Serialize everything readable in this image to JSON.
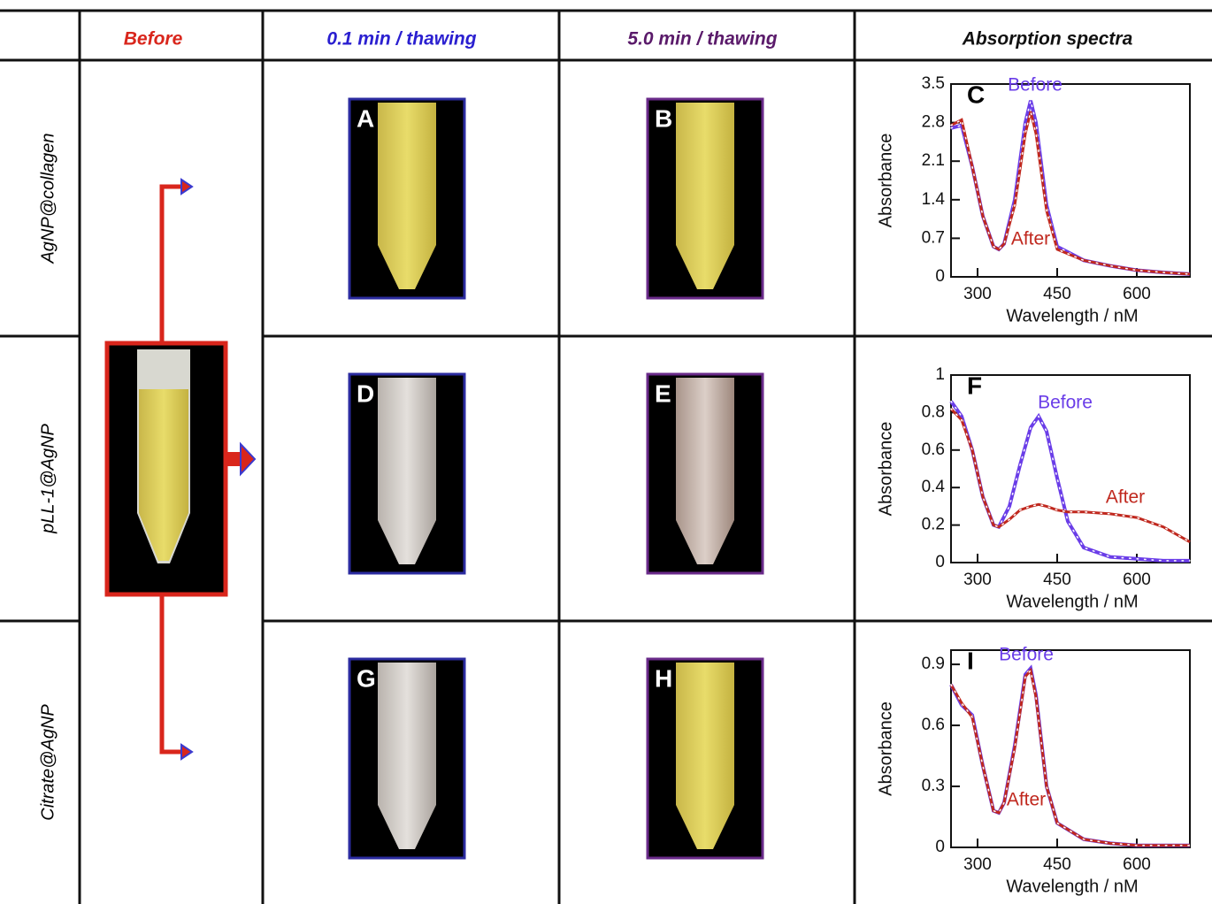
{
  "header": {
    "cells": [
      "Before",
      "0.1 min /  thawing",
      "5.0 min / thawing",
      "Absorption spectra"
    ]
  },
  "rows": [
    "AgNP@collagen",
    "pLL-1@AgNP",
    "Citrate@AgNP"
  ],
  "panels": [
    "A",
    "B",
    "D",
    "E",
    "G",
    "H"
  ],
  "chart_data": [
    {
      "type": "line",
      "title": "C",
      "x_label": "Wavelength / nM",
      "y_label": "Absorbance",
      "x": [
        250,
        270,
        290,
        310,
        330,
        340,
        350,
        370,
        390,
        400,
        410,
        430,
        450,
        500,
        550,
        600,
        650,
        700
      ],
      "series": [
        {
          "name": "Before",
          "color": "#6a3de8",
          "values": [
            2.7,
            2.75,
            2.0,
            1.1,
            0.55,
            0.5,
            0.6,
            1.4,
            2.8,
            3.2,
            2.8,
            1.3,
            0.55,
            0.3,
            0.2,
            0.12,
            0.08,
            0.05
          ]
        },
        {
          "name": "After",
          "color": "#c0281e",
          "values": [
            2.75,
            2.85,
            2.0,
            1.1,
            0.55,
            0.5,
            0.6,
            1.3,
            2.6,
            3.0,
            2.6,
            1.2,
            0.5,
            0.3,
            0.2,
            0.12,
            0.08,
            0.05
          ]
        }
      ],
      "xlim": [
        250,
        700
      ],
      "xticks": [
        300,
        450,
        600
      ],
      "ylim": [
        0,
        3.5
      ],
      "yticks": [
        0,
        0.7,
        1.4,
        2.1,
        2.8,
        3.5
      ]
    },
    {
      "type": "line",
      "title": "F",
      "x_label": "Wavelength / nM",
      "y_label": "Absorbance",
      "x": [
        250,
        270,
        290,
        310,
        330,
        340,
        360,
        380,
        400,
        415,
        430,
        450,
        470,
        500,
        550,
        600,
        650,
        700
      ],
      "series": [
        {
          "name": "Before",
          "color": "#6a3de8",
          "values": [
            0.86,
            0.78,
            0.6,
            0.35,
            0.2,
            0.19,
            0.3,
            0.52,
            0.72,
            0.78,
            0.7,
            0.45,
            0.22,
            0.08,
            0.03,
            0.02,
            0.01,
            0.01
          ]
        },
        {
          "name": "After",
          "color": "#c0281e",
          "values": [
            0.82,
            0.76,
            0.6,
            0.35,
            0.2,
            0.19,
            0.23,
            0.28,
            0.3,
            0.31,
            0.3,
            0.28,
            0.27,
            0.27,
            0.26,
            0.24,
            0.19,
            0.11
          ]
        }
      ],
      "xlim": [
        250,
        700
      ],
      "xticks": [
        300,
        450,
        600
      ],
      "ylim": [
        0,
        1
      ],
      "yticks": [
        0,
        0.2,
        0.4,
        0.6,
        0.8,
        1
      ]
    },
    {
      "type": "line",
      "title": "I",
      "x_label": "Wavelength / nM",
      "y_label": "Absorbance",
      "x": [
        250,
        270,
        290,
        310,
        330,
        340,
        350,
        370,
        390,
        400,
        410,
        430,
        450,
        500,
        550,
        600,
        650,
        700
      ],
      "series": [
        {
          "name": "Before",
          "color": "#6a3de8",
          "values": [
            0.8,
            0.7,
            0.65,
            0.4,
            0.18,
            0.17,
            0.22,
            0.5,
            0.85,
            0.88,
            0.75,
            0.3,
            0.12,
            0.04,
            0.02,
            0.01,
            0.01,
            0.01
          ]
        },
        {
          "name": "After",
          "color": "#c0281e",
          "values": [
            0.8,
            0.71,
            0.64,
            0.4,
            0.18,
            0.17,
            0.22,
            0.49,
            0.84,
            0.87,
            0.74,
            0.3,
            0.12,
            0.04,
            0.02,
            0.01,
            0.01,
            0.01
          ]
        }
      ],
      "xlim": [
        250,
        700
      ],
      "xticks": [
        300,
        450,
        600
      ],
      "ylim": [
        0,
        0.97
      ],
      "yticks": [
        0,
        0.3,
        0.6,
        0.9
      ]
    }
  ]
}
